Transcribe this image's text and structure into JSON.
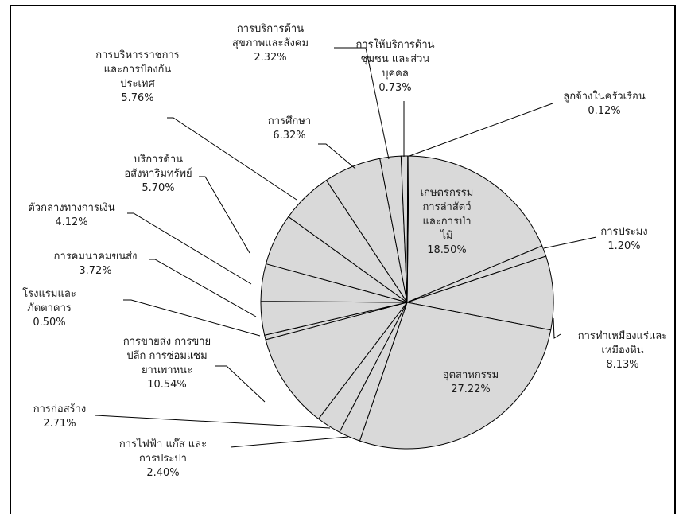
{
  "chart_data": {
    "type": "pie",
    "title": "",
    "fill_color": "#d9d9d9",
    "edge_color": "#000000",
    "slices": [
      {
        "label": "เกษตรกรรม การล่าสัตว์ และการป่าไม้",
        "label_lines": [
          "เกษตรกรรม",
          "การล่าสัตว์",
          "และการป่า",
          "ไม้"
        ],
        "value": 18.5,
        "value_text": "18.50%"
      },
      {
        "label": "การประมง",
        "label_lines": [
          "การประมง"
        ],
        "value": 1.2,
        "value_text": "1.20%"
      },
      {
        "label": "การทำเหมืองแร่และเหมืองหิน",
        "label_lines": [
          "การทำเหมืองแร่และ",
          "เหมืองหิน"
        ],
        "value": 8.13,
        "value_text": "8.13%"
      },
      {
        "label": "อุตสาหกรรม",
        "label_lines": [
          "อุตสาหกรรม"
        ],
        "value": 27.22,
        "value_text": "27.22%"
      },
      {
        "label": "การไฟฟ้า แก๊ส และการประปา",
        "label_lines": [
          "การไฟฟ้า แก๊ส และ",
          "การประปา"
        ],
        "value": 2.4,
        "value_text": "2.40%"
      },
      {
        "label": "การก่อสร้าง",
        "label_lines": [
          "การก่อสร้าง"
        ],
        "value": 2.71,
        "value_text": "2.71%"
      },
      {
        "label": "การขายส่ง การขายปลีก การซ่อมแซมยานพาหนะ",
        "label_lines": [
          "การขายส่ง การขาย",
          "ปลีก การซ่อมแซม",
          "ยานพาหนะ"
        ],
        "value": 10.54,
        "value_text": "10.54%"
      },
      {
        "label": "โรงแรมและภัตตาคาร",
        "label_lines": [
          "โรงแรมและ",
          "ภัตตาคาร"
        ],
        "value": 0.5,
        "value_text": "0.50%"
      },
      {
        "label": "การคมนาคมขนส่ง",
        "label_lines": [
          "การคมนาคมขนส่ง"
        ],
        "value": 3.72,
        "value_text": "3.72%"
      },
      {
        "label": "ตัวกลางทางการเงิน",
        "label_lines": [
          "ตัวกลางทางการเงิน"
        ],
        "value": 4.12,
        "value_text": "4.12%"
      },
      {
        "label": "บริการด้านอสังหาริมทรัพย์",
        "label_lines": [
          "บริการด้าน",
          "อสังหาริมทรัพย์"
        ],
        "value": 5.7,
        "value_text": "5.70%"
      },
      {
        "label": "การบริหารราชการและการป้องกันประเทศ",
        "label_lines": [
          "การบริหารราชการ",
          "และการป้องกัน",
          "ประเทศ"
        ],
        "value": 5.76,
        "value_text": "5.76%"
      },
      {
        "label": "การศึกษา",
        "label_lines": [
          "การศึกษา"
        ],
        "value": 6.32,
        "value_text": "6.32%"
      },
      {
        "label": "การบริการด้านสุขภาพและสังคม",
        "label_lines": [
          "การบริการด้าน",
          "สุขภาพและสังคม"
        ],
        "value": 2.32,
        "value_text": "2.32%"
      },
      {
        "label": "การให้บริการด้านชุมชน และส่วนบุคคล",
        "label_lines": [
          "การให้บริการด้าน",
          "ชุมชน และส่วน",
          "บุคคล"
        ],
        "value": 0.73,
        "value_text": "0.73%"
      },
      {
        "label": "ลูกจ้างในครัวเรือน",
        "label_lines": [
          "ลูกจ้างในครัวเรือน"
        ],
        "value": 0.12,
        "value_text": "0.12%"
      }
    ]
  }
}
